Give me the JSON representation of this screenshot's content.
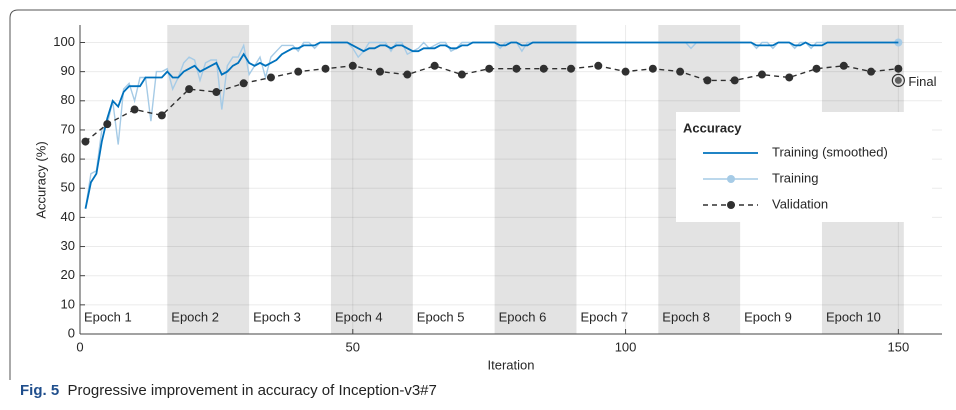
{
  "chart_data": {
    "type": "line",
    "xlabel": "Iteration",
    "ylabel": "Accuracy (%)",
    "xlim": [
      0,
      158
    ],
    "ylim": [
      0,
      106
    ],
    "xticks": [
      0,
      50,
      100,
      150
    ],
    "yticks": [
      0,
      10,
      20,
      30,
      40,
      50,
      60,
      70,
      80,
      90,
      100
    ],
    "grid": true,
    "legend": {
      "title": "Accuracy",
      "position": "right"
    },
    "epochs": [
      {
        "label": "Epoch 1",
        "start": 1,
        "end": 16,
        "shaded": false
      },
      {
        "label": "Epoch 2",
        "start": 16,
        "end": 31,
        "shaded": true
      },
      {
        "label": "Epoch 3",
        "start": 31,
        "end": 46,
        "shaded": false
      },
      {
        "label": "Epoch 4",
        "start": 46,
        "end": 61,
        "shaded": true
      },
      {
        "label": "Epoch 5",
        "start": 61,
        "end": 76,
        "shaded": false
      },
      {
        "label": "Epoch 6",
        "start": 76,
        "end": 91,
        "shaded": true
      },
      {
        "label": "Epoch 7",
        "start": 91,
        "end": 106,
        "shaded": false
      },
      {
        "label": "Epoch 8",
        "start": 106,
        "end": 121,
        "shaded": true
      },
      {
        "label": "Epoch 9",
        "start": 121,
        "end": 136,
        "shaded": false
      },
      {
        "label": "Epoch 10",
        "start": 136,
        "end": 151,
        "shaded": true
      }
    ],
    "series": [
      {
        "name": "Training (smoothed)",
        "color": "#0072bd",
        "style": "solid",
        "marker": false,
        "x": [
          1,
          2,
          3,
          4,
          5,
          6,
          7,
          8,
          9,
          10,
          11,
          12,
          13,
          14,
          15,
          16,
          17,
          18,
          19,
          20,
          21,
          22,
          23,
          24,
          25,
          26,
          27,
          28,
          29,
          30,
          31,
          32,
          33,
          34,
          35,
          36,
          37,
          38,
          39,
          40,
          41,
          42,
          43,
          44,
          45,
          46,
          47,
          48,
          49,
          50,
          51,
          52,
          53,
          54,
          55,
          56,
          57,
          58,
          59,
          60,
          61,
          62,
          63,
          64,
          65,
          66,
          67,
          68,
          69,
          70,
          71,
          72,
          73,
          74,
          75,
          76,
          77,
          78,
          79,
          80,
          81,
          82,
          83,
          84,
          85,
          86,
          87,
          88,
          89,
          90,
          91,
          92,
          93,
          94,
          95,
          96,
          97,
          98,
          99,
          100,
          101,
          102,
          103,
          104,
          105,
          106,
          107,
          108,
          109,
          110,
          111,
          112,
          113,
          114,
          115,
          116,
          117,
          118,
          119,
          120,
          121,
          122,
          123,
          124,
          125,
          126,
          127,
          128,
          129,
          130,
          131,
          132,
          133,
          134,
          135,
          136,
          137,
          138,
          139,
          140,
          141,
          142,
          143,
          144,
          145,
          146,
          147,
          148,
          149,
          150
        ],
        "values": [
          43,
          52,
          55,
          66,
          74,
          80,
          78,
          83,
          85,
          85,
          85,
          88,
          88,
          88,
          88,
          90,
          88,
          88,
          90,
          91,
          92,
          90,
          91,
          92,
          93,
          89,
          90,
          92,
          93,
          96,
          93,
          92,
          93,
          92,
          93,
          94,
          96,
          97,
          98,
          98,
          99,
          99,
          99,
          100,
          100,
          100,
          100,
          100,
          100,
          99,
          98,
          97,
          98,
          98,
          99,
          99,
          98,
          99,
          99,
          98,
          97,
          97,
          98,
          98,
          98,
          99,
          99,
          98,
          98,
          99,
          99,
          100,
          100,
          100,
          100,
          100,
          99,
          99,
          100,
          100,
          99,
          99,
          100,
          100,
          100,
          100,
          100,
          100,
          100,
          100,
          100,
          100,
          100,
          100,
          100,
          100,
          100,
          100,
          100,
          100,
          100,
          100,
          100,
          100,
          100,
          100,
          100,
          100,
          100,
          100,
          100,
          100,
          100,
          100,
          100,
          100,
          100,
          100,
          100,
          100,
          100,
          100,
          100,
          99,
          99,
          99,
          99,
          100,
          100,
          100,
          99,
          99,
          100,
          99,
          99,
          99,
          100,
          100,
          100,
          100,
          100,
          100,
          100,
          100,
          100,
          100,
          100,
          100,
          100,
          100
        ]
      },
      {
        "name": "Training",
        "color": "#a6cbe6",
        "style": "solid",
        "marker": "end",
        "x": [
          1,
          2,
          3,
          4,
          5,
          6,
          7,
          8,
          9,
          10,
          11,
          12,
          13,
          14,
          15,
          16,
          17,
          18,
          19,
          20,
          21,
          22,
          23,
          24,
          25,
          26,
          27,
          28,
          29,
          30,
          31,
          32,
          33,
          34,
          35,
          36,
          37,
          38,
          39,
          40,
          41,
          42,
          43,
          44,
          45,
          46,
          47,
          48,
          49,
          50,
          51,
          52,
          53,
          54,
          55,
          56,
          57,
          58,
          59,
          60,
          61,
          62,
          63,
          64,
          65,
          66,
          67,
          68,
          69,
          70,
          71,
          72,
          73,
          74,
          75,
          76,
          77,
          78,
          79,
          80,
          81,
          82,
          83,
          84,
          85,
          86,
          87,
          88,
          89,
          90,
          91,
          92,
          93,
          94,
          95,
          96,
          97,
          98,
          99,
          100,
          101,
          102,
          103,
          104,
          105,
          106,
          107,
          108,
          109,
          110,
          111,
          112,
          113,
          114,
          115,
          116,
          117,
          118,
          119,
          120,
          121,
          122,
          123,
          124,
          125,
          126,
          127,
          128,
          129,
          130,
          131,
          132,
          133,
          134,
          135,
          136,
          137,
          138,
          139,
          140,
          141,
          142,
          143,
          144,
          145,
          146,
          147,
          148,
          149,
          150
        ],
        "values": [
          43,
          55,
          56,
          70,
          72,
          80,
          65,
          84,
          86,
          80,
          88,
          88,
          73,
          90,
          90,
          91,
          84,
          88,
          93,
          95,
          94,
          87,
          93,
          94,
          94,
          77,
          92,
          95,
          95,
          99,
          89,
          92,
          95,
          88,
          95,
          97,
          99,
          99,
          99,
          97,
          100,
          100,
          98,
          100,
          100,
          100,
          100,
          100,
          100,
          98,
          95,
          97,
          100,
          100,
          100,
          100,
          97,
          100,
          100,
          96,
          97,
          98,
          100,
          98,
          99,
          100,
          100,
          97,
          98,
          100,
          100,
          100,
          100,
          100,
          100,
          100,
          98,
          100,
          100,
          100,
          97,
          100,
          100,
          100,
          100,
          100,
          100,
          100,
          100,
          100,
          100,
          100,
          100,
          100,
          100,
          100,
          100,
          100,
          100,
          100,
          100,
          100,
          100,
          100,
          100,
          100,
          100,
          100,
          100,
          100,
          100,
          98,
          100,
          100,
          100,
          100,
          100,
          100,
          100,
          100,
          100,
          100,
          100,
          98,
          100,
          100,
          98,
          100,
          100,
          100,
          98,
          100,
          100,
          98,
          100,
          100,
          100,
          100,
          100,
          100,
          100,
          100,
          100,
          100,
          100,
          100,
          100,
          100,
          100,
          100
        ]
      },
      {
        "name": "Validation",
        "color": "#303030",
        "style": "dashed",
        "marker": "all",
        "x": [
          1,
          5,
          10,
          15,
          20,
          25,
          30,
          35,
          40,
          45,
          50,
          55,
          60,
          65,
          70,
          75,
          80,
          85,
          90,
          95,
          100,
          105,
          110,
          115,
          120,
          125,
          130,
          135,
          140,
          145,
          150
        ],
        "values": [
          66,
          72,
          77,
          75,
          84,
          83,
          86,
          88,
          90,
          91,
          92,
          90,
          89,
          92,
          89,
          91,
          91,
          91,
          91,
          92,
          90,
          91,
          90,
          87,
          87,
          89,
          88,
          91,
          92,
          90,
          91
        ]
      }
    ],
    "final": {
      "x": 150,
      "value": 87,
      "label": "Final"
    },
    "caption": {
      "label": "Fig. 5",
      "text": "Progressive improvement in accuracy of Inception-v3#7"
    }
  }
}
